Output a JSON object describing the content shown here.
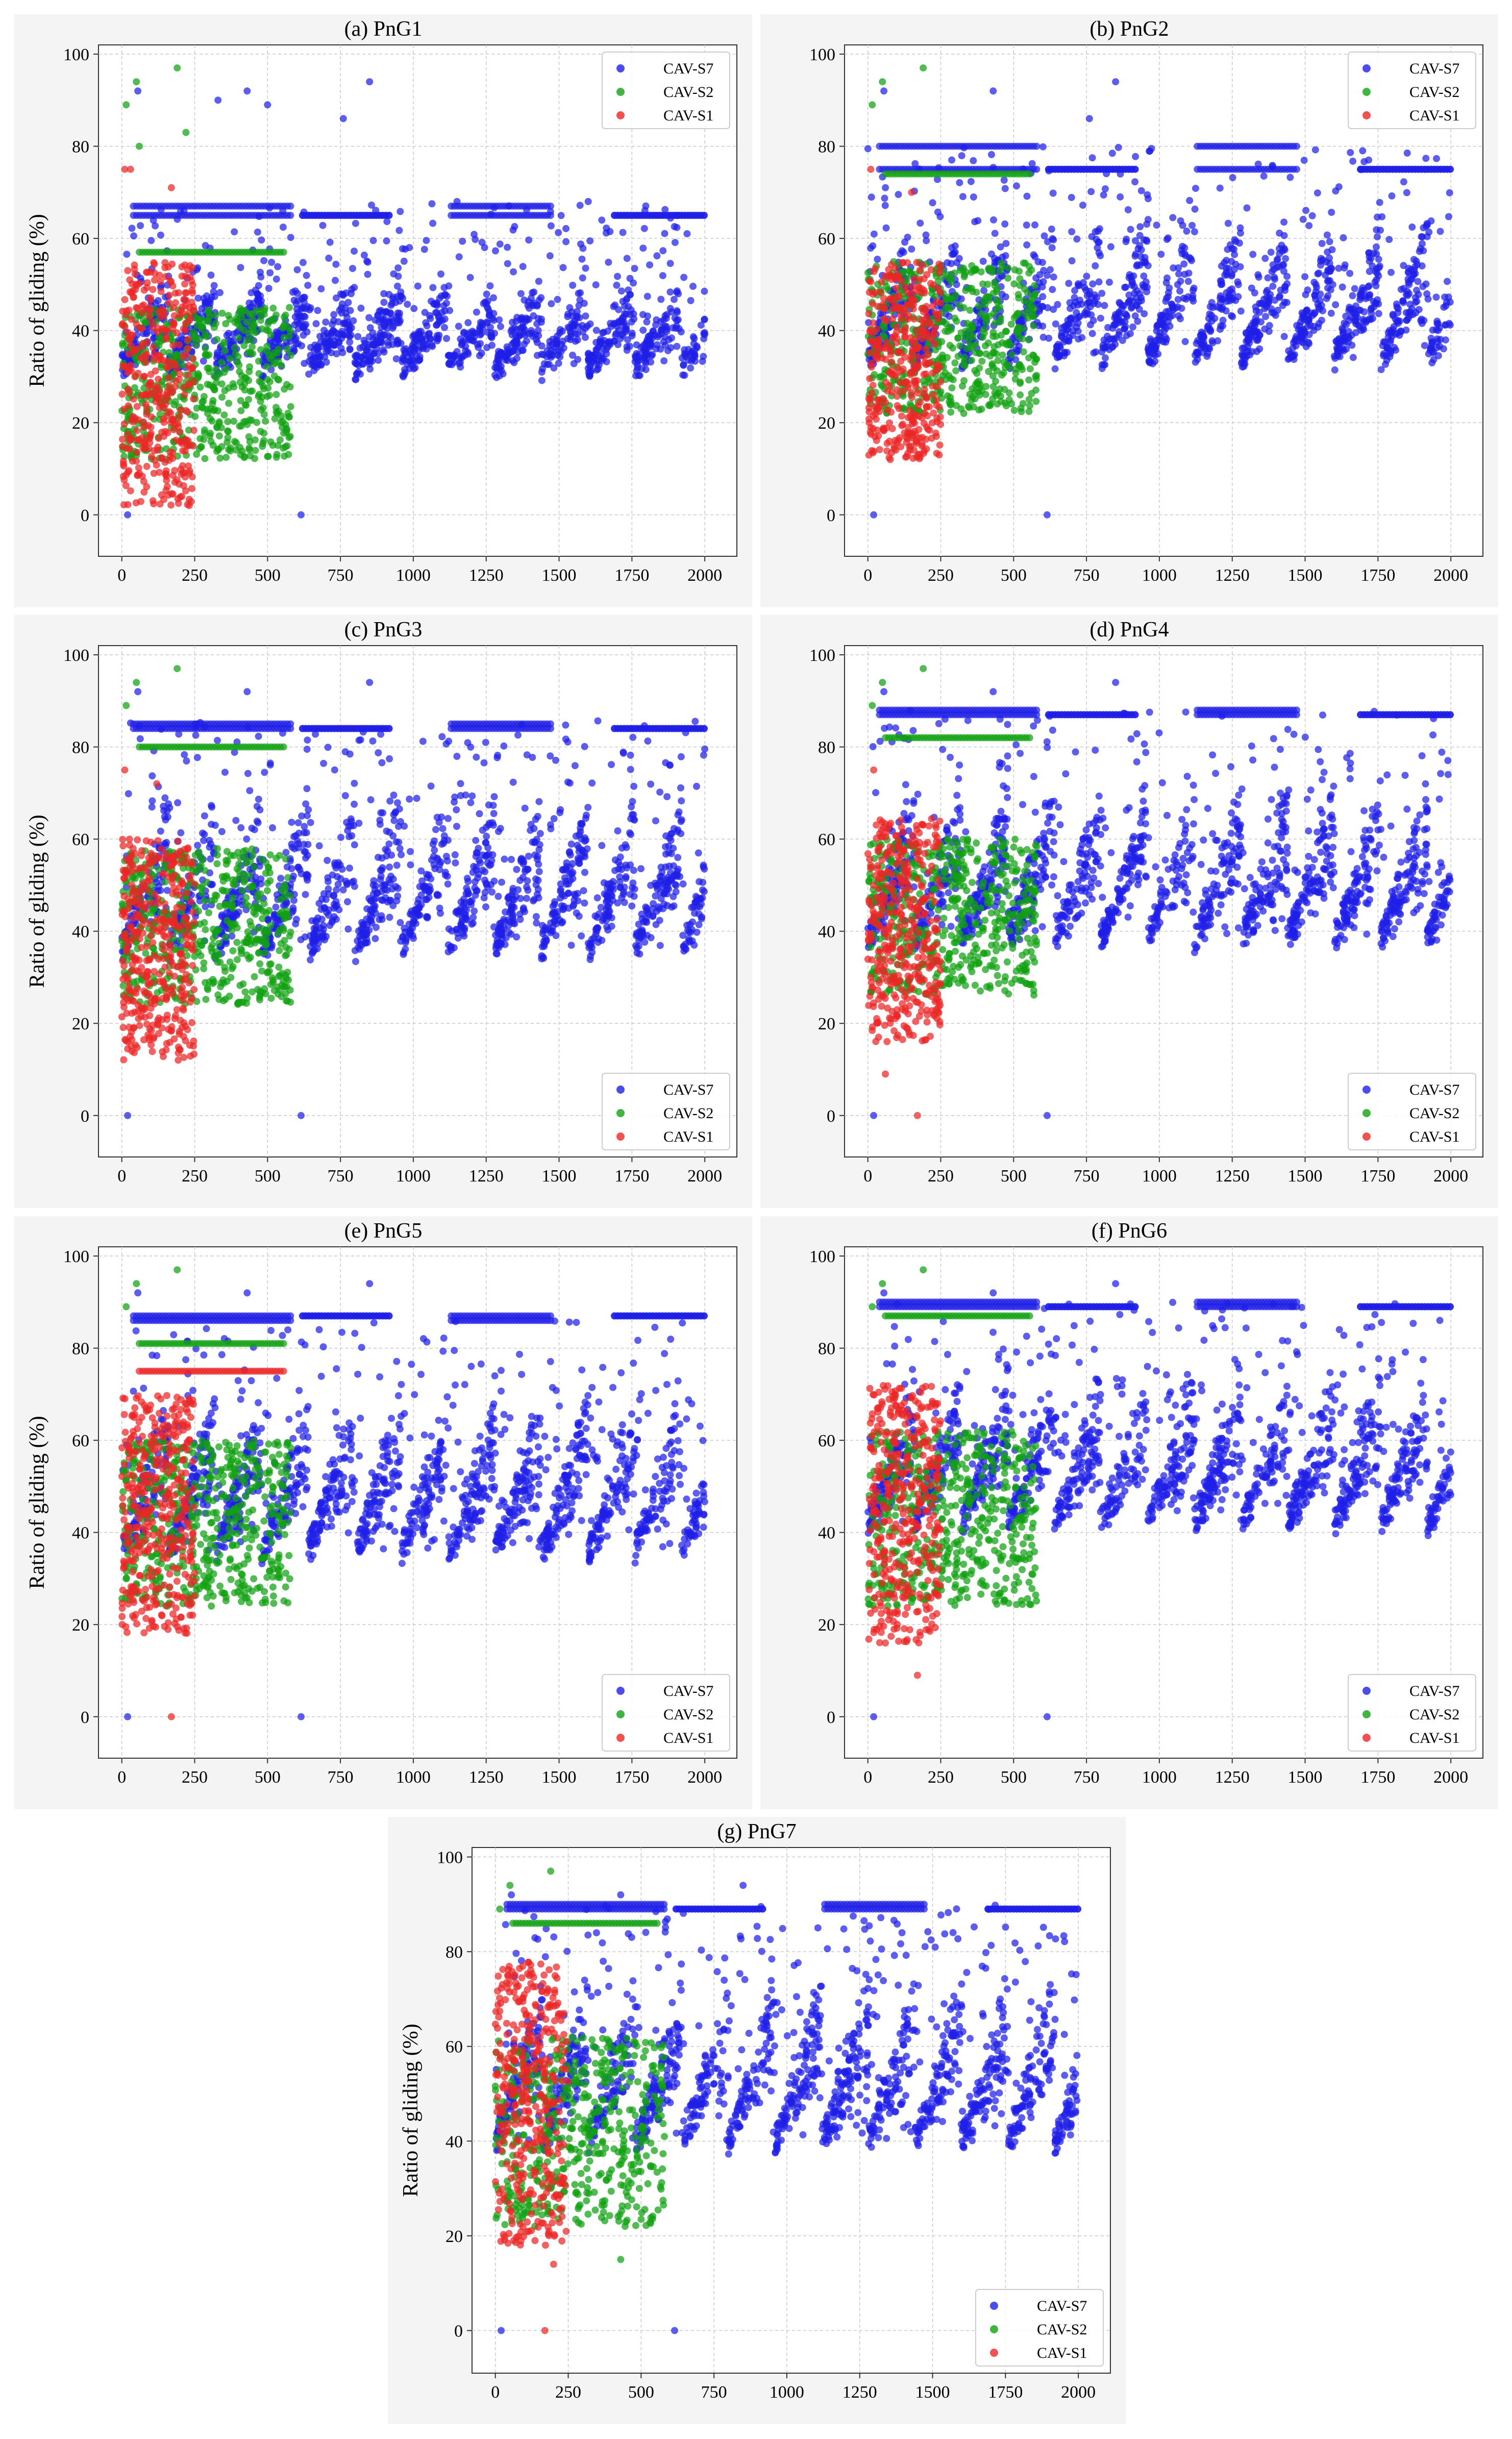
{
  "figure": {
    "description_free": true
  },
  "chart_data": [
    {
      "id": "a",
      "type": "scatter",
      "title": "(a) PnG1",
      "xlabel": "",
      "ylabel": "Ratio of gliding (%)",
      "xlim": [
        -80,
        2110
      ],
      "ylim": [
        -9,
        102
      ],
      "xticks": [
        0,
        250,
        500,
        750,
        1000,
        1250,
        1500,
        1750,
        2000
      ],
      "yticks": [
        0,
        20,
        40,
        60,
        80,
        100
      ],
      "grid": true,
      "legend_position": "top-right",
      "series": [
        {
          "name": "CAV-S7",
          "color": "#1f1fe8",
          "xmax": 2000,
          "base_lo": 32,
          "base_hi": 50,
          "plateaus": [
            67,
            65
          ],
          "outliers": [
            [
              20,
              0
            ],
            [
              615,
              0
            ],
            [
              55,
              92
            ],
            [
              330,
              90
            ],
            [
              430,
              92
            ],
            [
              500,
              89
            ],
            [
              850,
              94
            ],
            [
              760,
              86
            ],
            [
              1150,
              68
            ],
            [
              1600,
              68
            ]
          ]
        },
        {
          "name": "CAV-S2",
          "color": "#11a111",
          "xmax": 580,
          "base_lo": 12,
          "base_hi": 45,
          "plateaus": [
            57
          ],
          "outliers": [
            [
              15,
              89
            ],
            [
              50,
              94
            ],
            [
              190,
              97
            ],
            [
              60,
              80
            ],
            [
              220,
              83
            ]
          ]
        },
        {
          "name": "CAV-S1",
          "color": "#ec2525",
          "xmax": 250,
          "base_lo": 2,
          "base_hi": 55,
          "plateaus": [],
          "outliers": [
            [
              10,
              75
            ],
            [
              30,
              75
            ],
            [
              170,
              71
            ]
          ]
        }
      ]
    },
    {
      "id": "b",
      "type": "scatter",
      "title": "(b) PnG2",
      "xlabel": "",
      "ylabel": "",
      "xlim": [
        -80,
        2110
      ],
      "ylim": [
        -9,
        102
      ],
      "xticks": [
        0,
        250,
        500,
        750,
        1000,
        1250,
        1500,
        1750,
        2000
      ],
      "yticks": [
        0,
        20,
        40,
        60,
        80,
        100
      ],
      "grid": true,
      "legend_position": "top-right",
      "series": [
        {
          "name": "CAV-S7",
          "color": "#1f1fe8",
          "xmax": 2000,
          "base_lo": 34,
          "base_hi": 62,
          "plateaus": [
            80,
            75
          ],
          "outliers": [
            [
              20,
              0
            ],
            [
              615,
              0
            ],
            [
              55,
              92
            ],
            [
              430,
              92
            ],
            [
              850,
              94
            ],
            [
              760,
              86
            ]
          ]
        },
        {
          "name": "CAV-S2",
          "color": "#11a111",
          "xmax": 580,
          "base_lo": 22,
          "base_hi": 55,
          "plateaus": [
            74
          ],
          "outliers": [
            [
              15,
              89
            ],
            [
              50,
              94
            ],
            [
              190,
              97
            ]
          ]
        },
        {
          "name": "CAV-S1",
          "color": "#ec2525",
          "xmax": 250,
          "base_lo": 12,
          "base_hi": 55,
          "plateaus": [],
          "outliers": [
            [
              10,
              75
            ],
            [
              150,
              70
            ]
          ]
        }
      ]
    },
    {
      "id": "c",
      "type": "scatter",
      "title": "(c) PnG3",
      "xlabel": "",
      "ylabel": "Ratio of gliding (%)",
      "xlim": [
        -80,
        2110
      ],
      "ylim": [
        -9,
        102
      ],
      "xticks": [
        0,
        250,
        500,
        750,
        1000,
        1250,
        1500,
        1750,
        2000
      ],
      "yticks": [
        0,
        20,
        40,
        60,
        80,
        100
      ],
      "grid": true,
      "legend_position": "bottom-right",
      "series": [
        {
          "name": "CAV-S7",
          "color": "#1f1fe8",
          "xmax": 2000,
          "base_lo": 36,
          "base_hi": 68,
          "plateaus": [
            85,
            84
          ],
          "outliers": [
            [
              20,
              0
            ],
            [
              615,
              0
            ],
            [
              55,
              92
            ],
            [
              430,
              92
            ],
            [
              850,
              94
            ]
          ]
        },
        {
          "name": "CAV-S2",
          "color": "#11a111",
          "xmax": 580,
          "base_lo": 24,
          "base_hi": 58,
          "plateaus": [
            80
          ],
          "outliers": [
            [
              15,
              89
            ],
            [
              50,
              94
            ],
            [
              190,
              97
            ]
          ]
        },
        {
          "name": "CAV-S1",
          "color": "#ec2525",
          "xmax": 250,
          "base_lo": 12,
          "base_hi": 60,
          "plateaus": [],
          "outliers": [
            [
              10,
              75
            ],
            [
              120,
              72
            ]
          ]
        }
      ]
    },
    {
      "id": "d",
      "type": "scatter",
      "title": "(d) PnG4",
      "xlabel": "",
      "ylabel": "",
      "xlim": [
        -80,
        2110
      ],
      "ylim": [
        -9,
        102
      ],
      "xticks": [
        0,
        250,
        500,
        750,
        1000,
        1250,
        1500,
        1750,
        2000
      ],
      "yticks": [
        0,
        20,
        40,
        60,
        80,
        100
      ],
      "grid": true,
      "legend_position": "bottom-right",
      "series": [
        {
          "name": "CAV-S7",
          "color": "#1f1fe8",
          "xmax": 2000,
          "base_lo": 38,
          "base_hi": 70,
          "plateaus": [
            88,
            87
          ],
          "outliers": [
            [
              20,
              0
            ],
            [
              615,
              0
            ],
            [
              55,
              92
            ],
            [
              430,
              92
            ],
            [
              850,
              94
            ]
          ]
        },
        {
          "name": "CAV-S2",
          "color": "#11a111",
          "xmax": 580,
          "base_lo": 26,
          "base_hi": 60,
          "plateaus": [
            82
          ],
          "outliers": [
            [
              15,
              89
            ],
            [
              50,
              94
            ],
            [
              190,
              97
            ]
          ]
        },
        {
          "name": "CAV-S1",
          "color": "#ec2525",
          "xmax": 250,
          "base_lo": 16,
          "base_hi": 65,
          "plateaus": [],
          "outliers": [
            [
              60,
              9
            ],
            [
              170,
              0
            ],
            [
              20,
              75
            ]
          ]
        }
      ]
    },
    {
      "id": "e",
      "type": "scatter",
      "title": "(e) PnG5",
      "xlabel": "",
      "ylabel": "Ratio of gliding (%)",
      "xlim": [
        -80,
        2110
      ],
      "ylim": [
        -9,
        102
      ],
      "xticks": [
        0,
        250,
        500,
        750,
        1000,
        1250,
        1500,
        1750,
        2000
      ],
      "yticks": [
        0,
        20,
        40,
        60,
        80,
        100
      ],
      "grid": true,
      "legend_position": "bottom-right",
      "series": [
        {
          "name": "CAV-S7",
          "color": "#1f1fe8",
          "xmax": 2000,
          "base_lo": 36,
          "base_hi": 68,
          "plateaus": [
            86,
            87
          ],
          "outliers": [
            [
              20,
              0
            ],
            [
              615,
              0
            ],
            [
              55,
              92
            ],
            [
              430,
              92
            ],
            [
              850,
              94
            ]
          ]
        },
        {
          "name": "CAV-S2",
          "color": "#11a111",
          "xmax": 580,
          "base_lo": 24,
          "base_hi": 60,
          "plateaus": [
            81
          ],
          "outliers": [
            [
              15,
              89
            ],
            [
              50,
              94
            ],
            [
              190,
              97
            ]
          ]
        },
        {
          "name": "CAV-S1",
          "color": "#ec2525",
          "xmax": 250,
          "base_lo": 18,
          "base_hi": 70,
          "plateaus": [
            75
          ],
          "outliers": [
            [
              170,
              0
            ]
          ]
        }
      ]
    },
    {
      "id": "f",
      "type": "scatter",
      "title": "(f) PnG6",
      "xlabel": "",
      "ylabel": "",
      "xlim": [
        -80,
        2110
      ],
      "ylim": [
        -9,
        102
      ],
      "xticks": [
        0,
        250,
        500,
        750,
        1000,
        1250,
        1500,
        1750,
        2000
      ],
      "yticks": [
        0,
        20,
        40,
        60,
        80,
        100
      ],
      "grid": true,
      "legend_position": "bottom-right",
      "series": [
        {
          "name": "CAV-S7",
          "color": "#1f1fe8",
          "xmax": 2000,
          "base_lo": 42,
          "base_hi": 72,
          "plateaus": [
            90,
            89
          ],
          "outliers": [
            [
              20,
              0
            ],
            [
              615,
              0
            ],
            [
              55,
              92
            ],
            [
              430,
              92
            ],
            [
              850,
              94
            ]
          ]
        },
        {
          "name": "CAV-S2",
          "color": "#11a111",
          "xmax": 580,
          "base_lo": 24,
          "base_hi": 62,
          "plateaus": [
            87
          ],
          "outliers": [
            [
              15,
              89
            ],
            [
              50,
              94
            ],
            [
              190,
              97
            ]
          ]
        },
        {
          "name": "CAV-S1",
          "color": "#ec2525",
          "xmax": 250,
          "base_lo": 16,
          "base_hi": 72,
          "plateaus": [],
          "outliers": [
            [
              170,
              9
            ],
            [
              60,
              16
            ]
          ]
        }
      ]
    },
    {
      "id": "g",
      "type": "scatter",
      "title": "(g) PnG7",
      "xlabel": "",
      "ylabel": "Ratio of gliding (%)",
      "xlim": [
        -80,
        2110
      ],
      "ylim": [
        -9,
        102
      ],
      "xticks": [
        0,
        250,
        500,
        750,
        1000,
        1250,
        1500,
        1750,
        2000
      ],
      "yticks": [
        0,
        20,
        40,
        60,
        80,
        100
      ],
      "grid": true,
      "legend_position": "bottom-right",
      "series": [
        {
          "name": "CAV-S7",
          "color": "#1f1fe8",
          "xmax": 2000,
          "base_lo": 40,
          "base_hi": 72,
          "plateaus": [
            90,
            89
          ],
          "outliers": [
            [
              20,
              0
            ],
            [
              615,
              0
            ],
            [
              55,
              92
            ],
            [
              430,
              92
            ],
            [
              850,
              94
            ]
          ]
        },
        {
          "name": "CAV-S2",
          "color": "#11a111",
          "xmax": 580,
          "base_lo": 22,
          "base_hi": 62,
          "plateaus": [
            86
          ],
          "outliers": [
            [
              15,
              89
            ],
            [
              50,
              94
            ],
            [
              190,
              97
            ],
            [
              430,
              15
            ]
          ]
        },
        {
          "name": "CAV-S1",
          "color": "#ec2525",
          "xmax": 250,
          "base_lo": 18,
          "base_hi": 78,
          "plateaus": [],
          "outliers": [
            [
              170,
              0
            ],
            [
              200,
              14
            ]
          ]
        }
      ]
    }
  ]
}
